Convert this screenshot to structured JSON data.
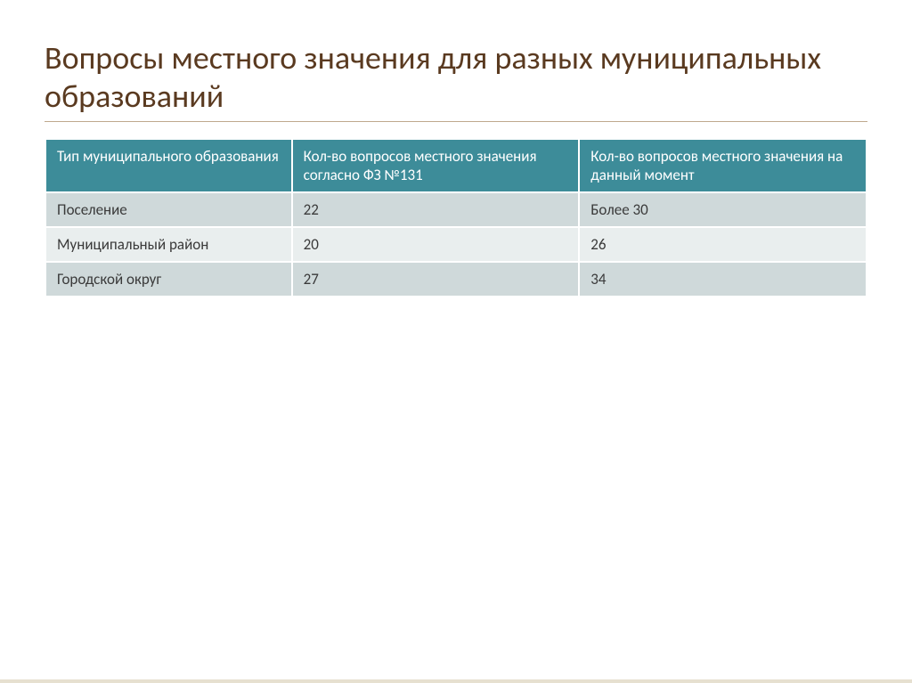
{
  "slide": {
    "title": "Вопросы местного значения для разных муниципальных образований",
    "title_color": "#5a3a20",
    "title_fontsize": 36,
    "background_color": "#ffffff",
    "bottom_accent_color": "#e6e0d0"
  },
  "table": {
    "type": "table",
    "header_bg": "#3d8c99",
    "header_text_color": "#ffffff",
    "row_alt_bg_1": "#cfd9da",
    "row_alt_bg_2": "#e9eeee",
    "cell_border_color": "#ffffff",
    "column_widths": [
      "30%",
      "35%",
      "35%"
    ],
    "columns": [
      "Тип муниципального образования",
      "Кол-во вопросов местного значения согласно ФЗ №131",
      "Кол-во вопросов местного значения на данный момент"
    ],
    "rows": [
      [
        "Поселение",
        "22",
        "Более 30"
      ],
      [
        "Муниципальный район",
        "20",
        "26"
      ],
      [
        "Городской округ",
        "27",
        "34"
      ]
    ]
  }
}
